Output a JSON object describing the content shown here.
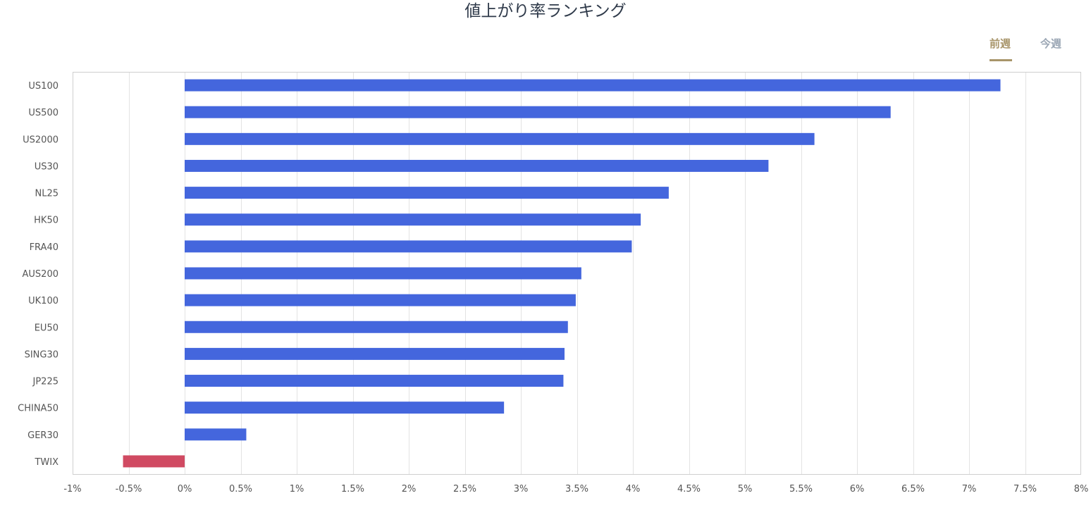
{
  "title": "値上がり率ランキング",
  "tabs": {
    "prev_label": "前週",
    "current_label": "今週",
    "active": "prev"
  },
  "colors": {
    "positive": "#4466dd",
    "negative": "#d04a62",
    "tab_active": "#a8956a",
    "tab_inactive": "#9aa6b4",
    "grid": "#e3e3e3",
    "frame": "#cfcfcf"
  },
  "chart_data": {
    "type": "bar",
    "orientation": "horizontal",
    "title": "値上がり率ランキング",
    "categories": [
      "US100",
      "US500",
      "US2000",
      "US30",
      "NL25",
      "HK50",
      "FRA40",
      "AUS200",
      "UK100",
      "EU50",
      "SING30",
      "JP225",
      "CHINA50",
      "GER30",
      "TWIX"
    ],
    "values": [
      7.28,
      6.3,
      5.62,
      5.21,
      4.32,
      4.07,
      3.99,
      3.54,
      3.49,
      3.42,
      3.39,
      3.38,
      2.85,
      0.55,
      -0.55
    ],
    "xlim": [
      -1,
      8
    ],
    "xticks": [
      -1,
      -0.5,
      0,
      0.5,
      1,
      1.5,
      2,
      2.5,
      3,
      3.5,
      4,
      4.5,
      5,
      5.5,
      6,
      6.5,
      7,
      7.5,
      8
    ],
    "xtick_labels": [
      "-1%",
      "-0.5%",
      "0%",
      "0.5%",
      "1%",
      "1.5%",
      "2%",
      "2.5%",
      "3%",
      "3.5%",
      "4%",
      "4.5%",
      "5%",
      "5.5%",
      "6%",
      "6.5%",
      "7%",
      "7.5%",
      "8%"
    ],
    "xlabel": "",
    "ylabel": "",
    "grid": "vertical",
    "legend": "none"
  }
}
